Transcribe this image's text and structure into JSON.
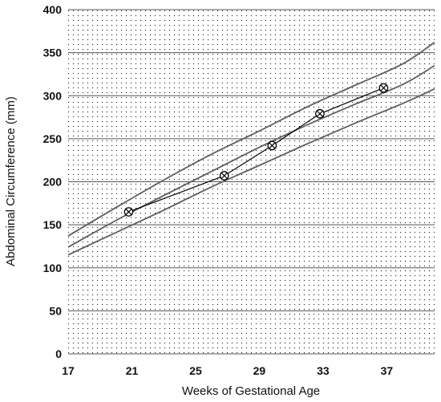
{
  "chart_data": {
    "type": "line",
    "title": "",
    "xlabel": "Weeks of Gestational Age",
    "ylabel": "Abdominal Circumference (mm)",
    "xlim": [
      17,
      40
    ],
    "ylim": [
      0,
      400
    ],
    "xticks": [
      17,
      21,
      25,
      29,
      33,
      37
    ],
    "yticks": [
      0,
      50,
      100,
      150,
      200,
      250,
      300,
      350,
      400
    ],
    "grid": "horizontal",
    "background": "dotted",
    "series": [
      {
        "role": "reference",
        "x": [
          17,
          20,
          23,
          26,
          29,
          32,
          35,
          38,
          40
        ],
        "y": [
          137,
          170,
          202,
          232,
          259,
          287,
          312,
          337,
          362
        ]
      },
      {
        "role": "reference",
        "x": [
          17,
          20,
          23,
          26,
          29,
          32,
          35,
          38,
          40
        ],
        "y": [
          124,
          155,
          184,
          212,
          240,
          266,
          290,
          313,
          335
        ]
      },
      {
        "role": "reference",
        "x": [
          17,
          20,
          23,
          26,
          29,
          32,
          35,
          38,
          40
        ],
        "y": [
          115,
          141,
          167,
          194,
          219,
          244,
          268,
          291,
          308
        ]
      },
      {
        "role": "observed",
        "marker": "circle-x",
        "x": [
          20.8,
          26.8,
          29.8,
          32.8,
          36.8
        ],
        "y": [
          165,
          207,
          242,
          279,
          309
        ]
      }
    ],
    "colors": {
      "reference": "#5e5e5e",
      "observed": "#000000",
      "grid": "#555555"
    }
  }
}
